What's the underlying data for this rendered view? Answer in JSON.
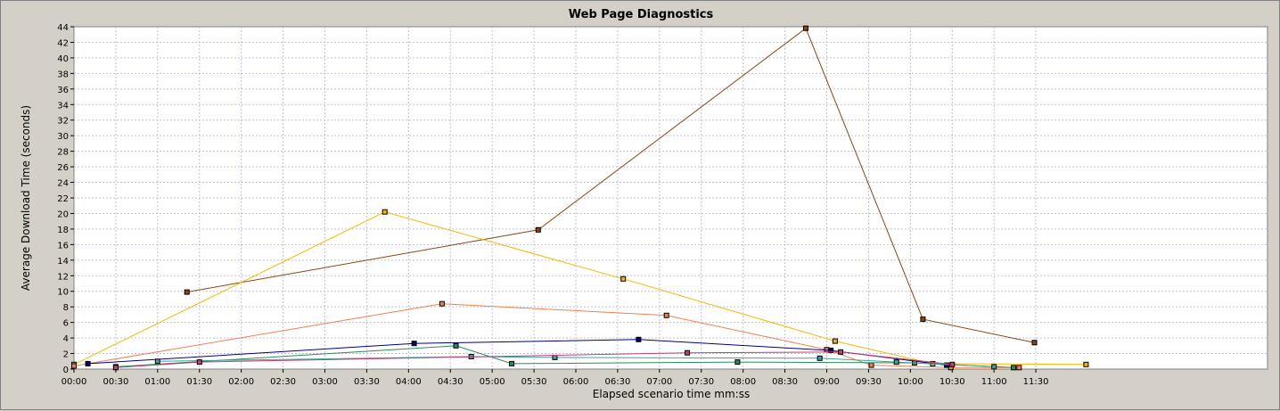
{
  "chart_data": {
    "type": "line",
    "title": "Web Page Diagnostics",
    "xlabel": "Elapsed scenario time mm:ss",
    "ylabel": "Average Download Time (seconds)",
    "x_unit": "seconds",
    "xlim": [
      0,
      720
    ],
    "ylim": [
      0,
      44
    ],
    "grid": true,
    "legend": "none",
    "x_ticks": [
      {
        "value": 0,
        "label": "00:00"
      },
      {
        "value": 30,
        "label": "00:30"
      },
      {
        "value": 60,
        "label": "01:00"
      },
      {
        "value": 90,
        "label": "01:30"
      },
      {
        "value": 120,
        "label": "02:00"
      },
      {
        "value": 150,
        "label": "02:30"
      },
      {
        "value": 180,
        "label": "03:00"
      },
      {
        "value": 210,
        "label": "03:30"
      },
      {
        "value": 240,
        "label": "04:00"
      },
      {
        "value": 270,
        "label": "04:30"
      },
      {
        "value": 300,
        "label": "05:00"
      },
      {
        "value": 330,
        "label": "05:30"
      },
      {
        "value": 360,
        "label": "06:00"
      },
      {
        "value": 390,
        "label": "06:30"
      },
      {
        "value": 420,
        "label": "07:00"
      },
      {
        "value": 450,
        "label": "07:30"
      },
      {
        "value": 480,
        "label": "08:00"
      },
      {
        "value": 510,
        "label": "08:30"
      },
      {
        "value": 540,
        "label": "09:00"
      },
      {
        "value": 570,
        "label": "09:30"
      },
      {
        "value": 600,
        "label": "10:00"
      },
      {
        "value": 630,
        "label": "10:30"
      },
      {
        "value": 660,
        "label": "11:00"
      },
      {
        "value": 690,
        "label": "11:30"
      }
    ],
    "y_ticks": [
      0,
      2,
      4,
      6,
      8,
      10,
      12,
      14,
      16,
      18,
      20,
      22,
      24,
      26,
      28,
      30,
      32,
      34,
      36,
      38,
      40,
      42,
      44
    ],
    "series": [
      {
        "color": "#8b4513",
        "points": [
          [
            81,
            9.9
          ],
          [
            333,
            17.9
          ],
          [
            525,
            43.8
          ],
          [
            609,
            6.4
          ],
          [
            689,
            3.4
          ]
        ]
      },
      {
        "color": "#f5b800",
        "points": [
          [
            0,
            0.6
          ],
          [
            223,
            20.2
          ],
          [
            394,
            11.6
          ],
          [
            546,
            3.6
          ],
          [
            616,
            0.7
          ],
          [
            726,
            0.6
          ]
        ]
      },
      {
        "color": "#f08050",
        "points": [
          [
            0,
            0.4
          ],
          [
            264,
            8.4
          ],
          [
            425,
            6.9
          ],
          [
            540,
            2.5
          ],
          [
            572,
            0.5
          ],
          [
            629,
            0.2
          ],
          [
            678,
            0.2
          ]
        ]
      },
      {
        "color": "#000080",
        "points": [
          [
            10,
            0.7
          ],
          [
            244,
            3.3
          ],
          [
            405,
            3.8
          ],
          [
            543,
            2.4
          ],
          [
            626,
            0.5
          ]
        ]
      },
      {
        "color": "#2e8b57",
        "points": [
          [
            30,
            0.3
          ],
          [
            274,
            3.0
          ],
          [
            314,
            0.7
          ],
          [
            476,
            0.9
          ],
          [
            603,
            0.8
          ],
          [
            674,
            0.2
          ]
        ]
      },
      {
        "color": "#40a0a0",
        "points": [
          [
            60,
            1.0
          ],
          [
            285,
            1.6
          ],
          [
            345,
            1.5
          ],
          [
            535,
            1.4
          ],
          [
            590,
            0.9
          ],
          [
            660,
            0.3
          ]
        ]
      },
      {
        "color": "#c04070",
        "points": [
          [
            30,
            0.2
          ],
          [
            90,
            0.9
          ],
          [
            440,
            2.1
          ],
          [
            550,
            2.2
          ],
          [
            630,
            0.6
          ]
        ]
      }
    ]
  }
}
